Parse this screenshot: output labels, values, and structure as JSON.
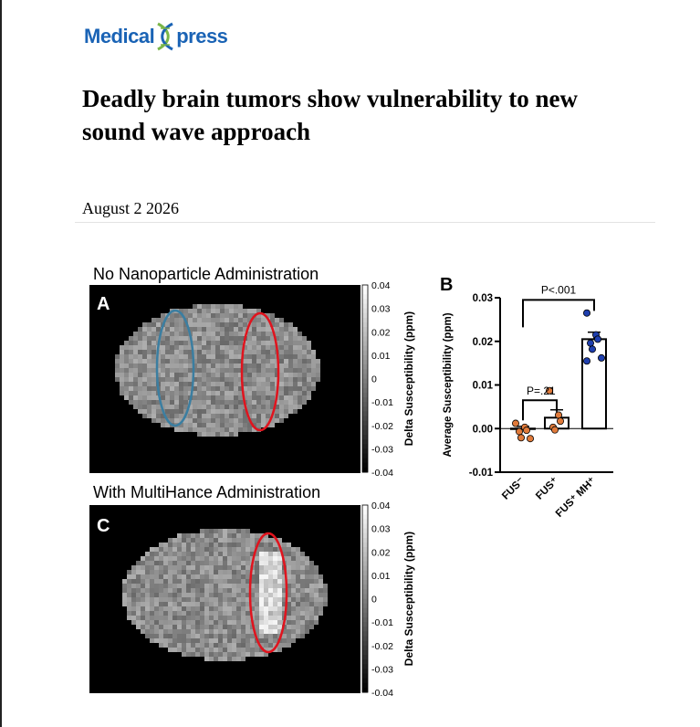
{
  "site": {
    "logo_part1": "Medical",
    "logo_part2": "press",
    "logo_icon": "dna-x-icon"
  },
  "article": {
    "title": "Deadly brain tumors show vulnerability to new sound wave approach",
    "date": "August 2 2026"
  },
  "figure": {
    "panel_a": {
      "caption": "No Nanoparticle Administration",
      "letter": "A"
    },
    "panel_c": {
      "caption": "With MultiHance Administration",
      "letter": "C"
    },
    "panel_b": {
      "letter": "B"
    },
    "colorbar": {
      "label": "Delta Susceptibility (ppm)",
      "ticks": [
        "0.04",
        "0.03",
        "0.02",
        "0.01",
        "0",
        "-0.01",
        "-0.02",
        "-0.03",
        "-0.04"
      ]
    },
    "colors": {
      "ellipse_blue": "#3b7ea1",
      "ellipse_red": "#e0141e",
      "marker_orange": "#e07a3a",
      "marker_blue": "#1f3fae"
    }
  },
  "chart_data": {
    "type": "bar",
    "ylabel": "Average Susceptibility (ppm)",
    "ylim": [
      -0.01,
      0.03
    ],
    "yticks": [
      "0.03",
      "0.02",
      "0.01",
      "0.00",
      "-0.01"
    ],
    "categories": [
      "FUS⁻",
      "FUS⁺",
      "FUS⁺ MH⁺"
    ],
    "values": [
      0.0,
      0.0025,
      0.0205
    ],
    "errors": [
      0.0005,
      0.0018,
      0.0016
    ],
    "points": [
      [
        0.0012,
        0.0003,
        -0.0004,
        -0.0007,
        -0.0021,
        -0.0023
      ],
      [
        0.0087,
        0.0031,
        0.0017,
        0.0003,
        -0.0003
      ],
      [
        0.0265,
        0.0215,
        0.0205,
        0.0196,
        0.0182,
        0.0162,
        0.0155
      ]
    ],
    "significance": [
      {
        "from": 0,
        "to": 1,
        "label": "P=.21"
      },
      {
        "from": 0,
        "to": 2,
        "label": "P<.001"
      }
    ]
  }
}
